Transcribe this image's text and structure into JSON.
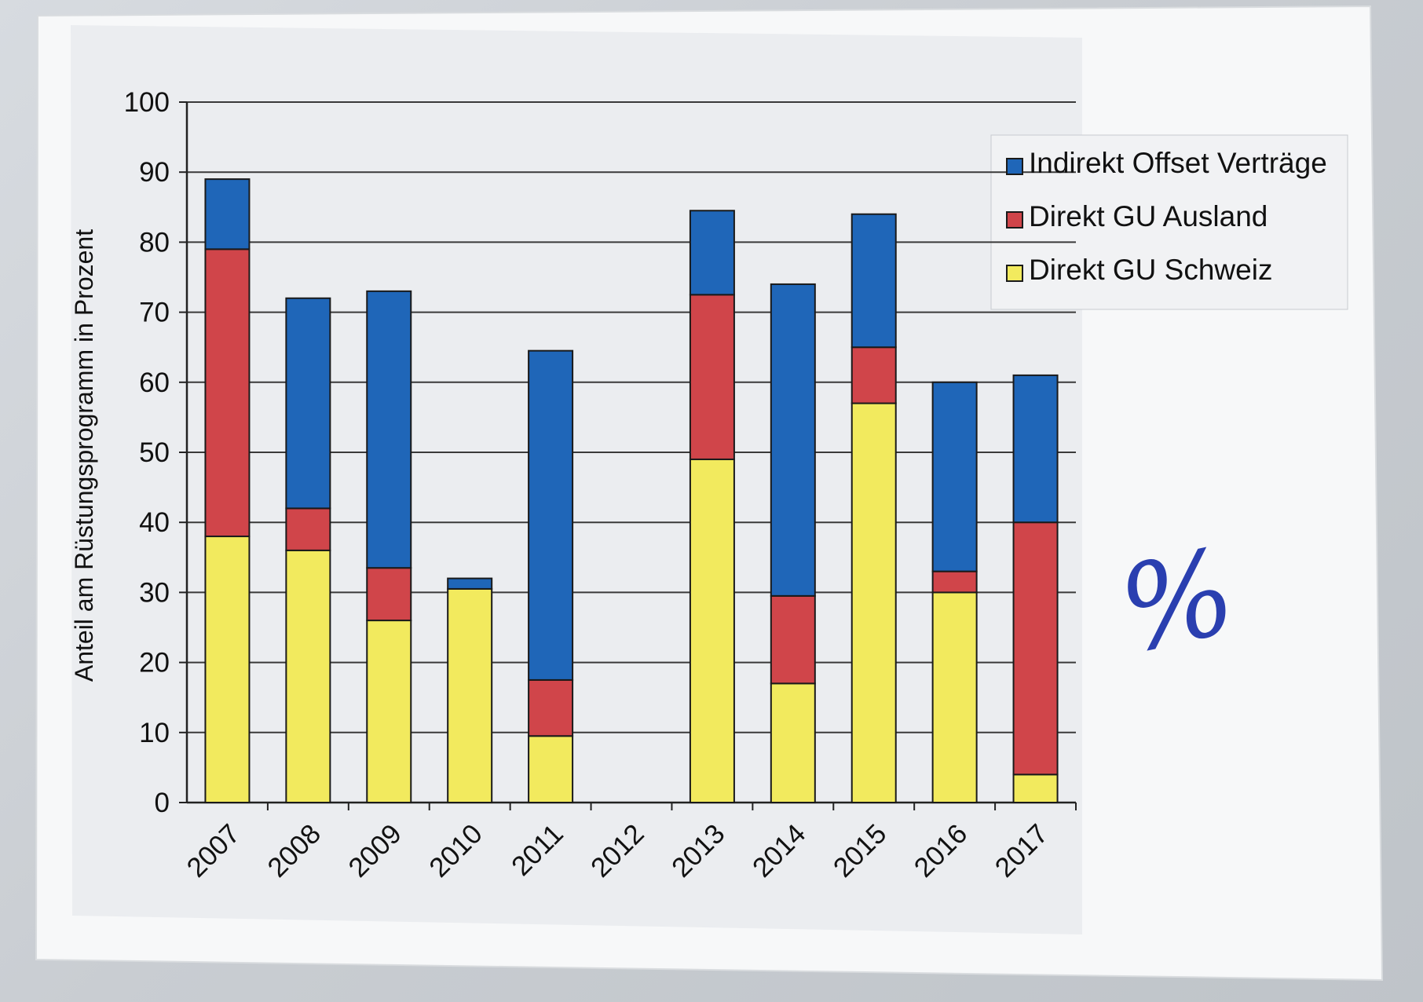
{
  "chart_data": {
    "type": "bar",
    "stacked": true,
    "title": "",
    "xlabel": "",
    "ylabel": "Anteil am Rüstungsprogramm in Prozent",
    "ylim": [
      0,
      100
    ],
    "yticks": [
      0,
      10,
      20,
      30,
      40,
      50,
      60,
      70,
      80,
      90,
      100
    ],
    "grid": true,
    "legend_position": "top-right",
    "categories": [
      "2007",
      "2008",
      "2009",
      "2010",
      "2011",
      "2012",
      "2013",
      "2014",
      "2015",
      "2016",
      "2017"
    ],
    "series": [
      {
        "name": "Direkt GU Schweiz",
        "color": "#f2ea5e",
        "values": [
          38,
          36,
          26,
          30.5,
          9.5,
          0,
          49,
          17,
          57,
          30,
          4
        ]
      },
      {
        "name": "Direkt GU Ausland",
        "color": "#d0454a",
        "values": [
          41,
          6,
          7.5,
          0,
          8,
          0,
          23.5,
          12.5,
          8,
          3,
          36
        ]
      },
      {
        "name": "Indirekt Offset Verträge",
        "color": "#1f66b8",
        "values": [
          10,
          30,
          39.5,
          1.5,
          47,
          0,
          12,
          44.5,
          19,
          27,
          21
        ]
      }
    ],
    "legend_order": [
      "Indirekt Offset Verträge",
      "Direkt GU Ausland",
      "Direkt GU Schweiz"
    ]
  },
  "annotation": {
    "handwritten_note": "%"
  }
}
